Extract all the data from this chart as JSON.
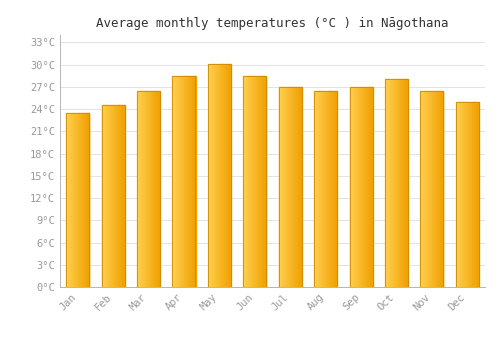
{
  "title": "Average monthly temperatures (°C ) in Nāgothana",
  "months": [
    "Jan",
    "Feb",
    "Mar",
    "Apr",
    "May",
    "Jun",
    "Jul",
    "Aug",
    "Sep",
    "Oct",
    "Nov",
    "Dec"
  ],
  "temperatures": [
    23.5,
    24.5,
    26.5,
    28.5,
    30.1,
    28.5,
    27.0,
    26.5,
    27.0,
    28.0,
    26.5,
    25.0
  ],
  "bar_color_left": "#FFD050",
  "bar_color_right": "#F0A000",
  "background_color": "#FFFFFF",
  "grid_color": "#DDDDDD",
  "ytick_labels": [
    "0°C",
    "3°C",
    "6°C",
    "9°C",
    "12°C",
    "15°C",
    "18°C",
    "21°C",
    "24°C",
    "27°C",
    "30°C",
    "33°C"
  ],
  "ytick_values": [
    0,
    3,
    6,
    9,
    12,
    15,
    18,
    21,
    24,
    27,
    30,
    33
  ],
  "ylim": [
    0,
    34
  ],
  "title_fontsize": 9,
  "tick_fontsize": 7.5,
  "tick_color": "#999999",
  "spine_color": "#AAAAAA"
}
